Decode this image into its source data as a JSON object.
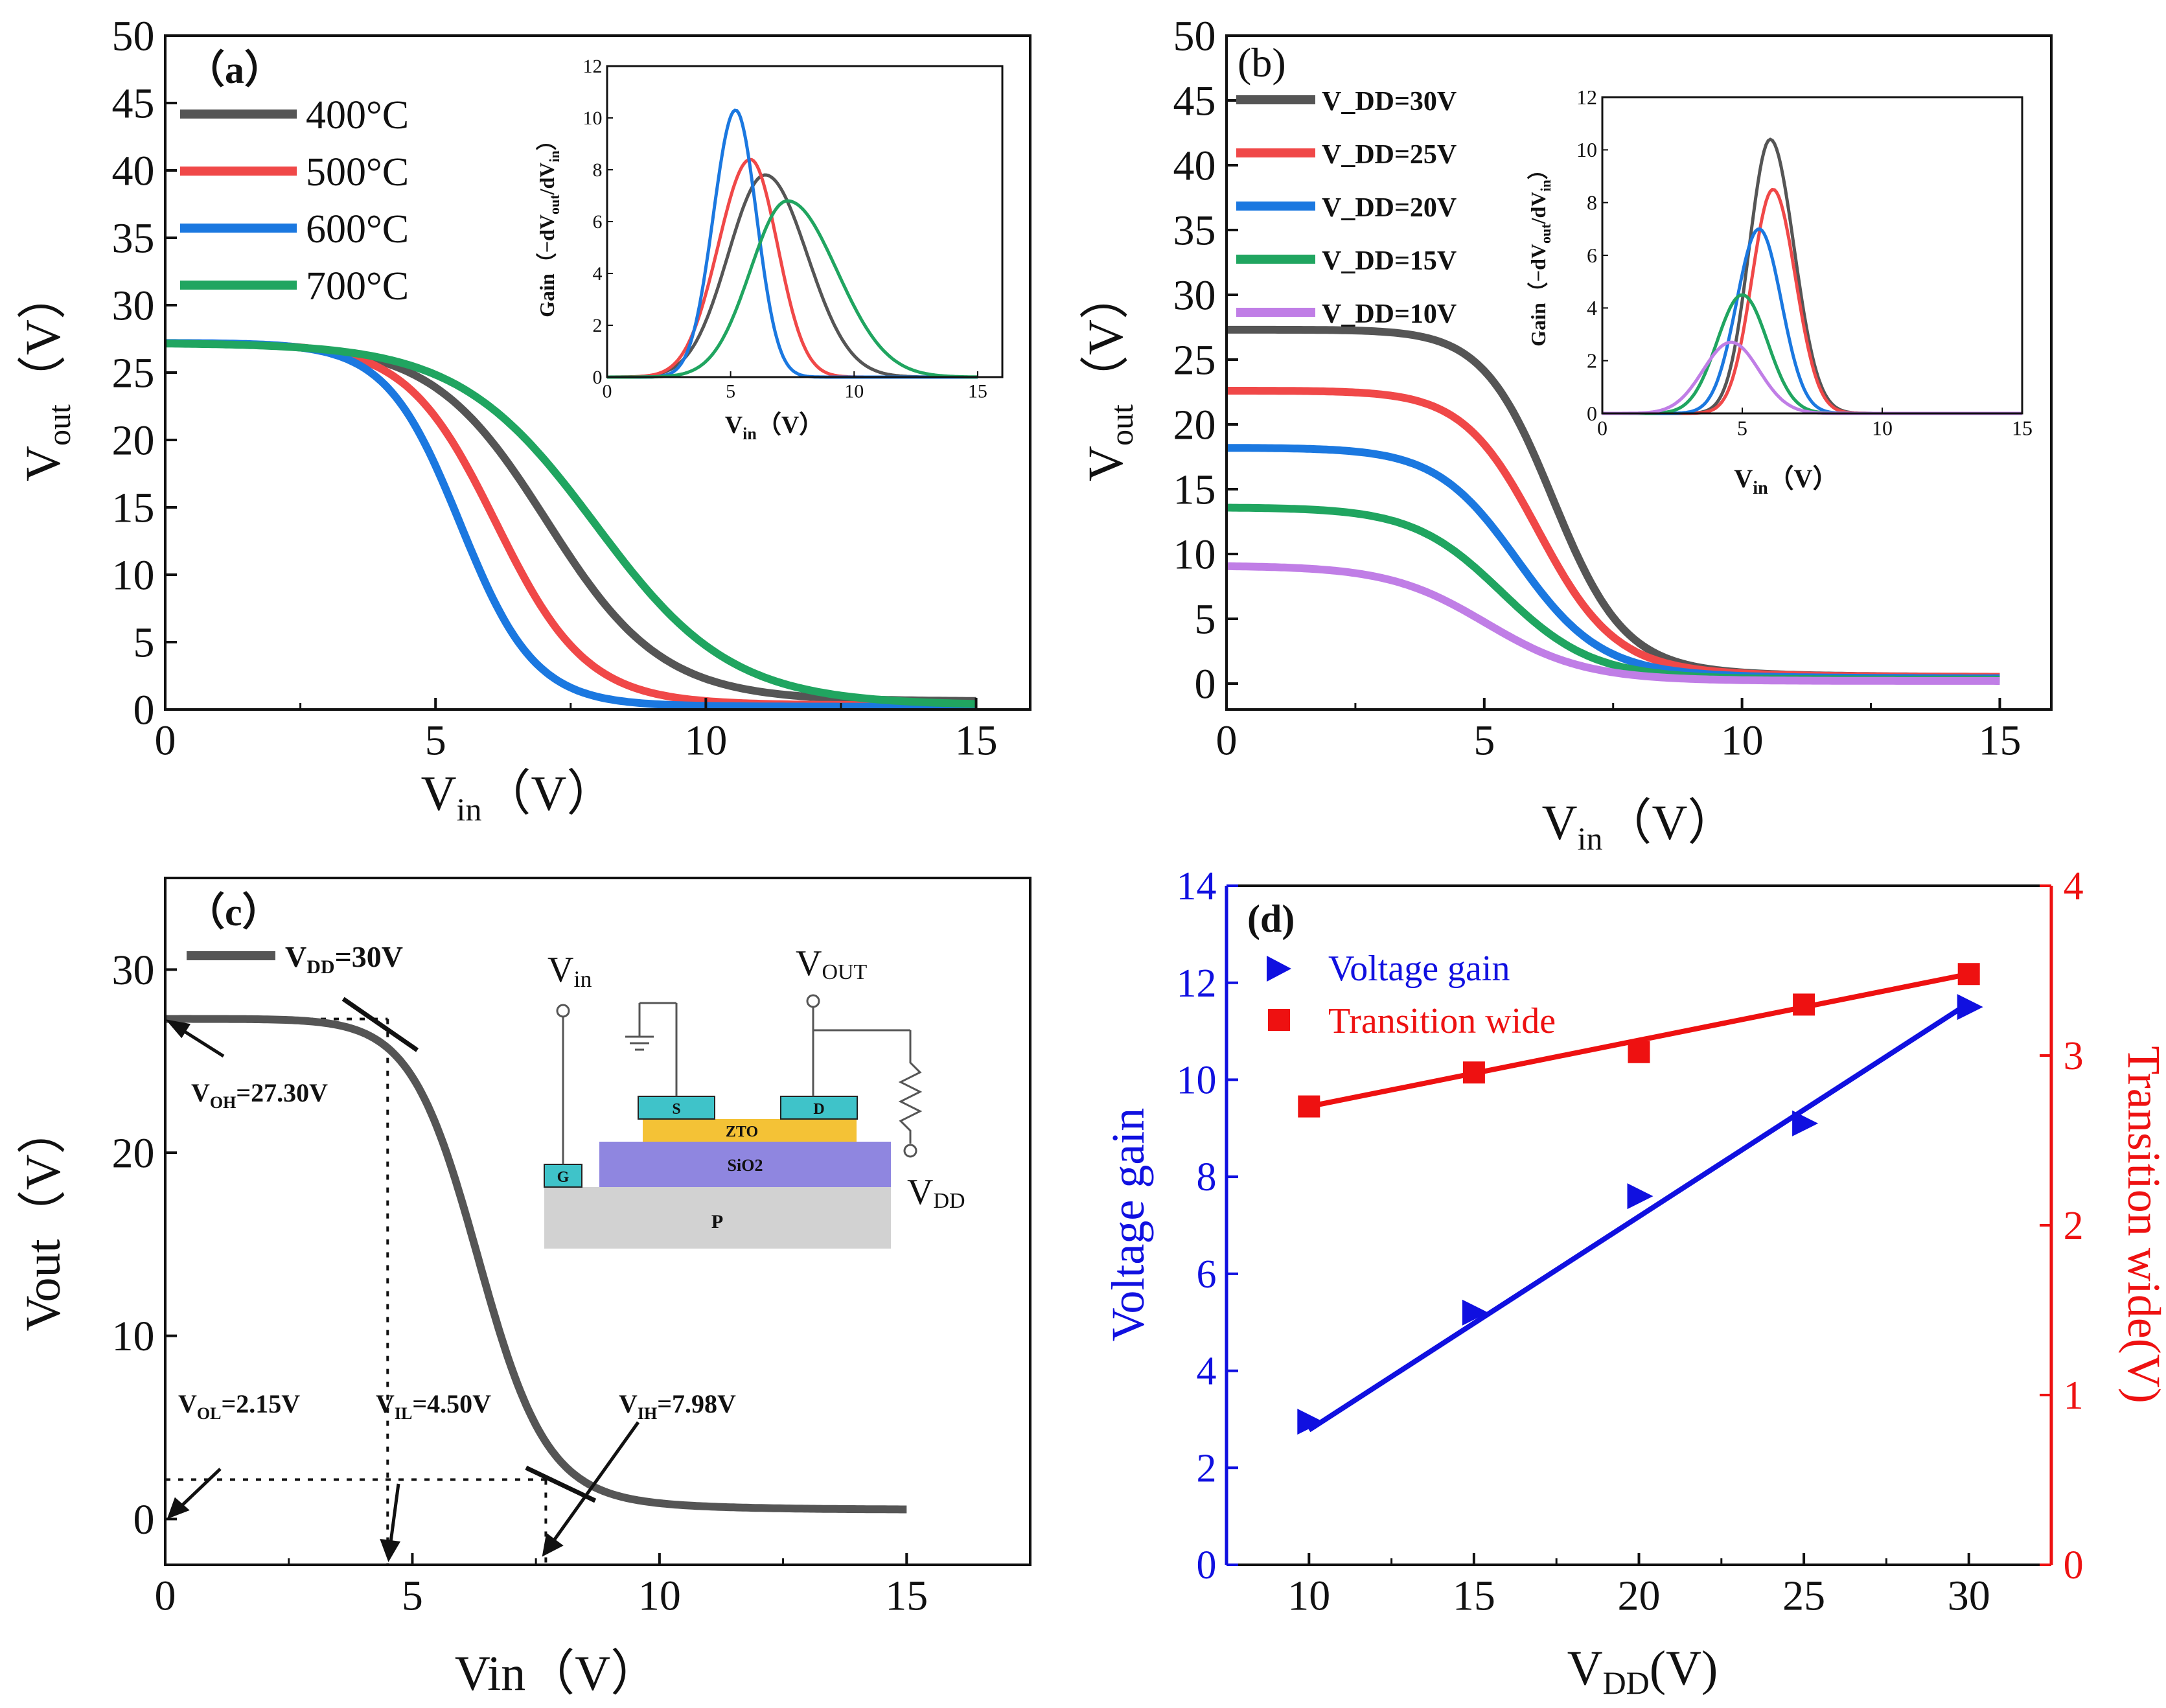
{
  "chart_data": [
    {
      "panel": "a",
      "type": "line",
      "label": "（a）",
      "xlabel": "V_in（V）",
      "ylabel": "V_out（V）",
      "xlim": [
        0,
        16
      ],
      "ylim": [
        0,
        50
      ],
      "xticks": [
        0,
        5,
        10,
        15
      ],
      "yticks": [
        0,
        5,
        10,
        15,
        20,
        25,
        30,
        35,
        40,
        45,
        50
      ],
      "legend": {
        "position": "top-left"
      },
      "series": [
        {
          "name": "400°C",
          "color": "#555555",
          "vmax": 27.2,
          "vlow": 0.6,
          "vm": 7.0,
          "k": 0.95,
          "tail": 0.9
        },
        {
          "name": "500°C",
          "color": "#f04848",
          "vmax": 27.2,
          "vlow": 0.3,
          "vm": 6.1,
          "k": 1.2,
          "tail": 0.5
        },
        {
          "name": "600°C",
          "color": "#1b78e0",
          "vmax": 27.2,
          "vlow": 0.2,
          "vm": 5.45,
          "k": 1.45,
          "tail": 0.3
        },
        {
          "name": "700°C",
          "color": "#20a560",
          "vmax": 27.2,
          "vlow": 0.3,
          "vm": 7.9,
          "k": 0.8,
          "tail": 0.6
        }
      ],
      "inset": {
        "type": "line",
        "xlabel": "V_in（V）",
        "ylabel": "Gain（−dV_out/dV_in）",
        "xlim": [
          0,
          16
        ],
        "ylim": [
          0,
          12
        ],
        "xticks": [
          0,
          5,
          10,
          15
        ],
        "yticks": [
          0,
          2,
          4,
          6,
          8,
          10,
          12
        ],
        "series": [
          {
            "name": "400°C",
            "color": "#555555",
            "peak_x": 6.4,
            "peak_y": 7.8,
            "wl": 1.5,
            "wr": 1.7
          },
          {
            "name": "500°C",
            "color": "#f04848",
            "peak_x": 5.8,
            "peak_y": 8.4,
            "wl": 1.3,
            "wr": 1.1
          },
          {
            "name": "600°C",
            "color": "#1b78e0",
            "peak_x": 5.2,
            "peak_y": 10.3,
            "wl": 0.9,
            "wr": 0.85
          },
          {
            "name": "700°C",
            "color": "#20a560",
            "peak_x": 7.3,
            "peak_y": 6.8,
            "wl": 1.5,
            "wr": 2.0
          }
        ]
      }
    },
    {
      "panel": "b",
      "type": "line",
      "label": "(b)",
      "xlabel": "V_in（V）",
      "ylabel": "V_out（V）",
      "xlim": [
        0,
        16
      ],
      "ylim": [
        -2,
        50
      ],
      "xticks": [
        0,
        5,
        10,
        15
      ],
      "yticks": [
        0,
        5,
        10,
        15,
        20,
        25,
        30,
        35,
        40,
        45,
        50
      ],
      "legend": {
        "position": "top-left"
      },
      "series": [
        {
          "name": "V_DD=30V",
          "color": "#555555",
          "vmax": 27.3,
          "vlow": 0.5,
          "vm": 6.3,
          "k": 1.45,
          "tail": 1.3
        },
        {
          "name": "V_DD=25V",
          "color": "#f04848",
          "vmax": 22.6,
          "vlow": 0.5,
          "vm": 6.0,
          "k": 1.35,
          "tail": 1.2
        },
        {
          "name": "V_DD=20V",
          "color": "#1b78e0",
          "vmax": 18.2,
          "vlow": 0.4,
          "vm": 5.6,
          "k": 1.25,
          "tail": 0.9
        },
        {
          "name": "V_DD=15V",
          "color": "#20a560",
          "vmax": 13.6,
          "vlow": 0.3,
          "vm": 5.3,
          "k": 1.15,
          "tail": 0.5
        },
        {
          "name": "V_DD=10V",
          "color": "#c07ee6",
          "vmax": 9.1,
          "vlow": 0.2,
          "vm": 5.0,
          "k": 1.05,
          "tail": 0.2
        }
      ],
      "inset": {
        "type": "line",
        "xlabel": "V_in（V）",
        "ylabel": "Gain（−dV_out/dV_in）",
        "xlim": [
          0,
          15
        ],
        "ylim": [
          0,
          12
        ],
        "xticks": [
          0,
          5,
          10,
          15
        ],
        "yticks": [
          0,
          2,
          4,
          6,
          8,
          10,
          12
        ],
        "series": [
          {
            "name": "V_DD=30V",
            "color": "#555555",
            "peak_x": 6.0,
            "peak_y": 10.4,
            "wl": 0.75,
            "wr": 0.85
          },
          {
            "name": "V_DD=25V",
            "color": "#f04848",
            "peak_x": 6.1,
            "peak_y": 8.5,
            "wl": 0.75,
            "wr": 0.8
          },
          {
            "name": "V_DD=20V",
            "color": "#1b78e0",
            "peak_x": 5.6,
            "peak_y": 7.0,
            "wl": 0.8,
            "wr": 0.8
          },
          {
            "name": "V_DD=15V",
            "color": "#20a560",
            "peak_x": 5.0,
            "peak_y": 4.5,
            "wl": 0.9,
            "wr": 0.9
          },
          {
            "name": "V_DD=10V",
            "color": "#c07ee6",
            "peak_x": 4.6,
            "peak_y": 2.7,
            "wl": 1.0,
            "wr": 1.0
          }
        ]
      }
    },
    {
      "panel": "c",
      "type": "line",
      "label": "（c）",
      "xlabel": "Vin（V）",
      "ylabel": "Vout（V）",
      "xlim": [
        0,
        17.5
      ],
      "ylim": [
        -2.5,
        35
      ],
      "xticks": [
        0,
        5,
        10,
        15
      ],
      "yticks": [
        0,
        10,
        20,
        30
      ],
      "series": [
        {
          "name": "V_DD=30V",
          "color": "#555555",
          "vmax": 27.3,
          "vlow": 0.5,
          "vm": 6.3,
          "k": 1.45,
          "tail": 1.3
        }
      ],
      "annotations": [
        "V_OH=27.30V",
        "V_OL=2.15V",
        "V_IL=4.50V",
        "V_IH=7.98V"
      ],
      "schematic": {
        "in_label": "V_in",
        "out_label": "V_OUT",
        "supply_label": "V_DD",
        "gate": "G",
        "source": "S",
        "drain": "D",
        "channel": "ZTO",
        "dielectric": "SiO2",
        "substrate": "P"
      }
    },
    {
      "panel": "d",
      "type": "scatter",
      "label": "(d)",
      "xlabel": "V_DD(V)",
      "ylabel": "Voltage gain",
      "y2label": "Transition wide(V)",
      "xlim": [
        7.5,
        32.5
      ],
      "ylim": [
        0,
        14
      ],
      "y2lim": [
        0,
        4
      ],
      "xticks": [
        10,
        15,
        20,
        25,
        30
      ],
      "yticks": [
        0,
        2,
        4,
        6,
        8,
        10,
        12,
        14
      ],
      "y2ticks": [
        0,
        1,
        2,
        3,
        4
      ],
      "legend": {
        "position": "top-left"
      },
      "x": [
        10,
        15,
        20,
        25,
        30
      ],
      "series": [
        {
          "name": "Voltage gain",
          "axis": "left",
          "color": "#1010e0",
          "marker": "triangle-right",
          "values": [
            2.95,
            5.2,
            7.6,
            9.1,
            11.5
          ],
          "fit": [
            2.78,
            11.58
          ]
        },
        {
          "name": "Transition wide",
          "axis": "right",
          "color": "#ee1111",
          "marker": "square",
          "values": [
            2.7,
            2.9,
            3.02,
            3.3,
            3.48
          ],
          "fit": [
            2.7,
            3.48
          ]
        }
      ]
    }
  ]
}
